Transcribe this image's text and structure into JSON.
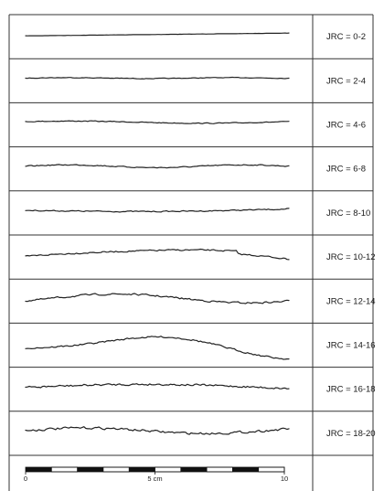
{
  "rows": [
    {
      "label": "JRC = 0-2"
    },
    {
      "label": "JRC = 2-4"
    },
    {
      "label": "JRC = 4-6"
    },
    {
      "label": "JRC = 6-8"
    },
    {
      "label": "JRC = 8-10"
    },
    {
      "label": "JRC = 10-12"
    },
    {
      "label": "JRC = 12-14"
    },
    {
      "label": "JRC = 14-16"
    },
    {
      "label": "JRC = 16-18"
    },
    {
      "label": "JRC = 18-20"
    }
  ],
  "scale_bar": {
    "ticks": [
      {
        "value": "0"
      },
      {
        "value": "5 cm"
      },
      {
        "value": "10"
      }
    ]
  }
}
